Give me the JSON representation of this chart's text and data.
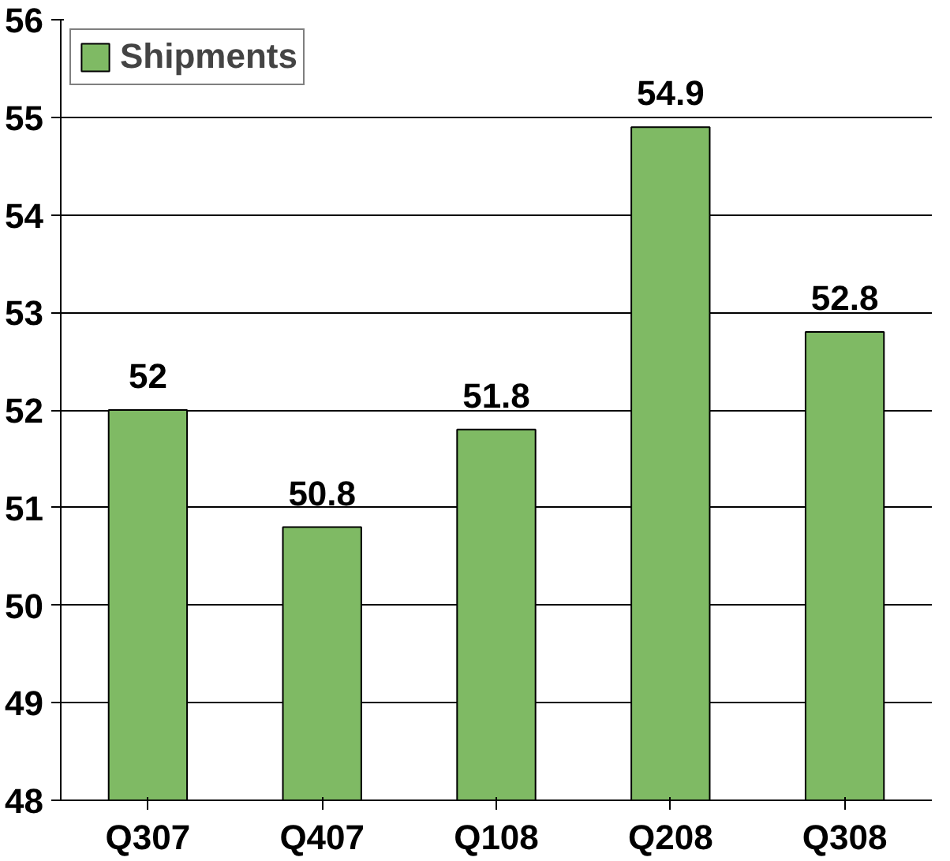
{
  "chart_data": {
    "type": "bar",
    "categories": [
      "Q307",
      "Q407",
      "Q108",
      "Q208",
      "Q308"
    ],
    "series": [
      {
        "name": "Shipments",
        "color": "#7fba64",
        "values": [
          52,
          50.8,
          51.8,
          54.9,
          52.8
        ]
      }
    ],
    "ylim": [
      48,
      56
    ],
    "yticks": [
      48,
      49,
      50,
      51,
      52,
      53,
      54,
      55,
      56
    ],
    "grid": "y",
    "legend": "top left",
    "data_labels": true
  }
}
